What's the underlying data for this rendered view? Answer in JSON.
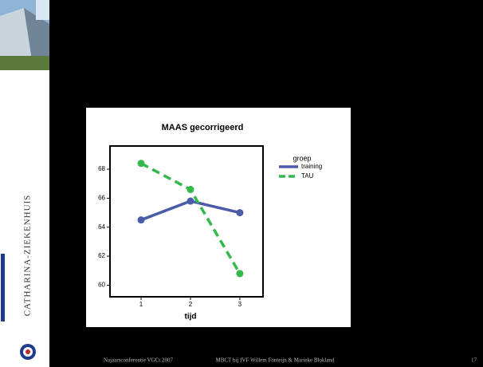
{
  "slide": {
    "sidebar_text": "CATHARINA-ZIEKENHUIS",
    "footer_left": "Najaarsconferentie VGCt 2007",
    "footer_center": "MBCT bij IVF Willem Fonteijn & Marieke Blokland",
    "page_number": "17"
  },
  "chart_data": {
    "type": "line",
    "title": "MAAS gecorrigeerd",
    "xlabel": "tijd",
    "x": [
      1,
      2,
      3
    ],
    "series": [
      {
        "name": "training",
        "color": "#4a5ca8",
        "dashed": false,
        "values": [
          64.5,
          65.8,
          65.0
        ]
      },
      {
        "name": "TAU",
        "color": "#33b84c",
        "dashed": true,
        "values": [
          68.4,
          66.6,
          60.8
        ]
      }
    ],
    "legend_title": "groep",
    "legend": "right",
    "xlim": [
      0.37,
      3.47
    ],
    "xticks": [
      1,
      2,
      3
    ],
    "ylim": [
      59.2,
      69.6
    ],
    "yticks": [
      60,
      62,
      64,
      66,
      68
    ],
    "grid": false
  }
}
